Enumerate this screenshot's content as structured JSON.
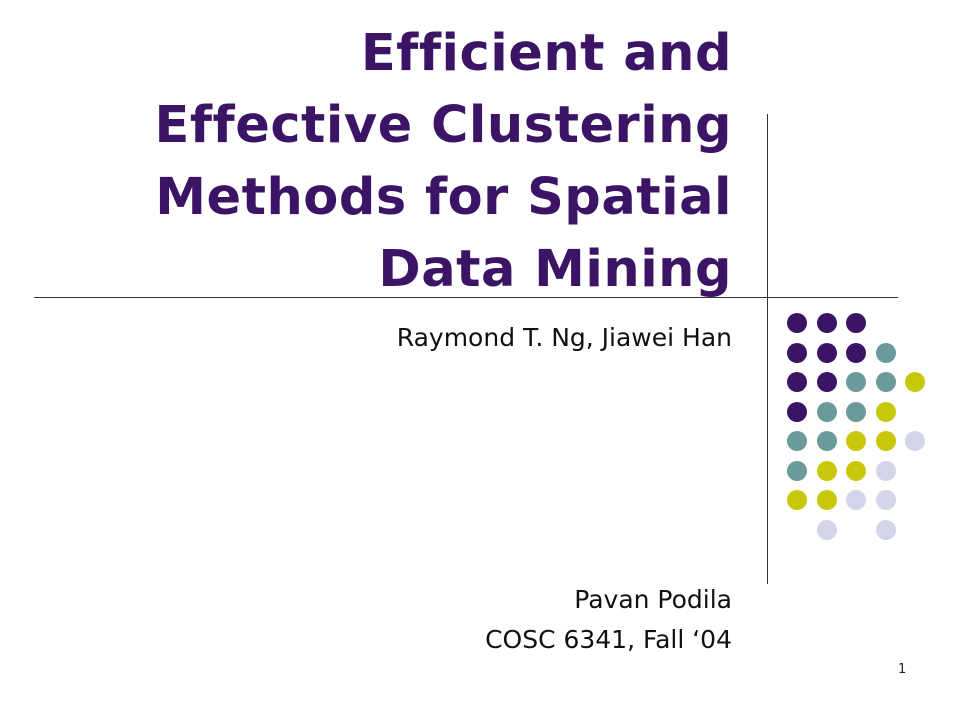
{
  "slide": {
    "title_lines": [
      "Efficient and",
      "Effective Clustering",
      "Methods for Spatial",
      "Data Mining"
    ],
    "authors": "Raymond T. Ng, Jiawei Han",
    "presenter": "Pavan Podila",
    "course": "COSC 6341, Fall ‘04",
    "page_number": "1"
  },
  "colors": {
    "title": "#3b1466",
    "purple": "#3b1466",
    "teal": "#6b9a9a",
    "yellow": "#c8c80a",
    "lavender": "#d4d4ea"
  },
  "dot_grid": [
    [
      "purple",
      "purple",
      "purple",
      "",
      ""
    ],
    [
      "purple",
      "purple",
      "purple",
      "teal",
      ""
    ],
    [
      "purple",
      "purple",
      "teal",
      "teal",
      "yellow"
    ],
    [
      "purple",
      "teal",
      "teal",
      "yellow",
      ""
    ],
    [
      "teal",
      "teal",
      "yellow",
      "yellow",
      "lavender"
    ],
    [
      "teal",
      "yellow",
      "yellow",
      "lavender",
      ""
    ],
    [
      "yellow",
      "yellow",
      "lavender",
      "lavender",
      ""
    ],
    [
      "",
      "lavender",
      "",
      "lavender",
      ""
    ]
  ]
}
